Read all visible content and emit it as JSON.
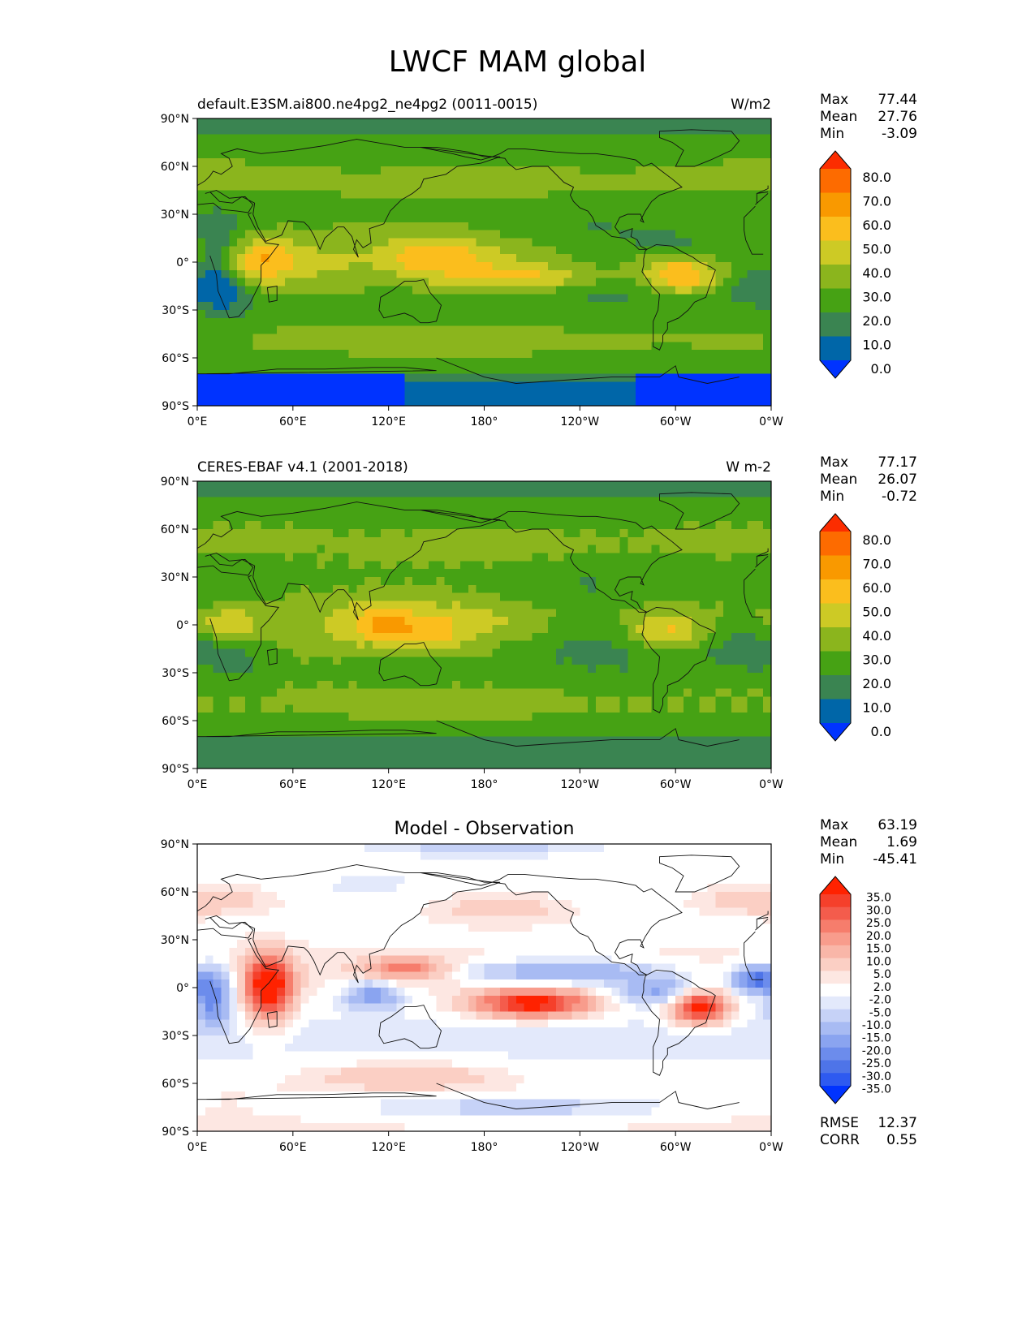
{
  "figure": {
    "title": "LWCF MAM global"
  },
  "axes": {
    "lat_ticks": [
      "90°N",
      "60°N",
      "30°N",
      "0°",
      "30°S",
      "60°S",
      "90°S"
    ],
    "lon_ticks": [
      "0°E",
      "60°E",
      "120°E",
      "180°",
      "120°W",
      "60°W",
      "0°W"
    ]
  },
  "chart_data": [
    {
      "type": "heatmap",
      "panel": "test",
      "title": "default.E3SM.ai800.ne4pg2_ne4pg2 (0011-0015)",
      "units": "W/m2",
      "stats": [
        {
          "label": "Max",
          "value": "77.44"
        },
        {
          "label": "Mean",
          "value": "27.76"
        },
        {
          "label": "Min",
          "value": "-3.09"
        }
      ],
      "colorbar": {
        "levels": [
          "80.0",
          "70.0",
          "60.0",
          "50.0",
          "40.0",
          "30.0",
          "20.0",
          "10.0",
          "0.0"
        ],
        "colors": [
          "#fc2d00",
          "#fd6b00",
          "#f99900",
          "#fbbe1d",
          "#cdca25",
          "#8bb51d",
          "#46a214",
          "#3a8451",
          "#0066a8",
          "#0033ff"
        ]
      },
      "lat_range": [
        -90,
        90
      ],
      "lon_range": [
        0,
        360
      ]
    },
    {
      "type": "heatmap",
      "panel": "reference",
      "title": "CERES-EBAF v4.1 (2001-2018)",
      "units": "W m-2",
      "stats": [
        {
          "label": "Max",
          "value": "77.17"
        },
        {
          "label": "Mean",
          "value": "26.07"
        },
        {
          "label": "Min",
          "value": "-0.72"
        }
      ],
      "colorbar": {
        "levels": [
          "80.0",
          "70.0",
          "60.0",
          "50.0",
          "40.0",
          "30.0",
          "20.0",
          "10.0",
          "0.0"
        ],
        "colors": [
          "#fc2d00",
          "#fd6b00",
          "#f99900",
          "#fbbe1d",
          "#cdca25",
          "#8bb51d",
          "#46a214",
          "#3a8451",
          "#0066a8",
          "#0033ff"
        ]
      },
      "lat_range": [
        -90,
        90
      ],
      "lon_range": [
        0,
        360
      ]
    },
    {
      "type": "heatmap",
      "panel": "difference",
      "title": "Model - Observation",
      "units": "",
      "stats": [
        {
          "label": "Max",
          "value": "63.19"
        },
        {
          "label": "Mean",
          "value": "1.69"
        },
        {
          "label": "Min",
          "value": "-45.41"
        }
      ],
      "colorbar": {
        "levels": [
          "35.0",
          "30.0",
          "25.0",
          "20.0",
          "15.0",
          "10.0",
          "5.0",
          "2.0",
          "-2.0",
          "-5.0",
          "-10.0",
          "-15.0",
          "-20.0",
          "-25.0",
          "-30.0",
          "-35.0"
        ],
        "colors": [
          "#ff2200",
          "#f5402b",
          "#f45c4c",
          "#f67d6c",
          "#f89c8c",
          "#f9b6a8",
          "#fbcfc4",
          "#fde7e2",
          "#ffffff",
          "#e3e9fb",
          "#c6d2f7",
          "#a8bbf3",
          "#8aa4f0",
          "#6c8cec",
          "#4e74e8",
          "#2e5af0",
          "#0033ff"
        ]
      },
      "extra_stats": [
        {
          "label": "RMSE",
          "value": "12.37"
        },
        {
          "label": "CORR",
          "value": "0.55"
        }
      ],
      "lat_range": [
        -90,
        90
      ],
      "lon_range": [
        0,
        360
      ]
    }
  ]
}
